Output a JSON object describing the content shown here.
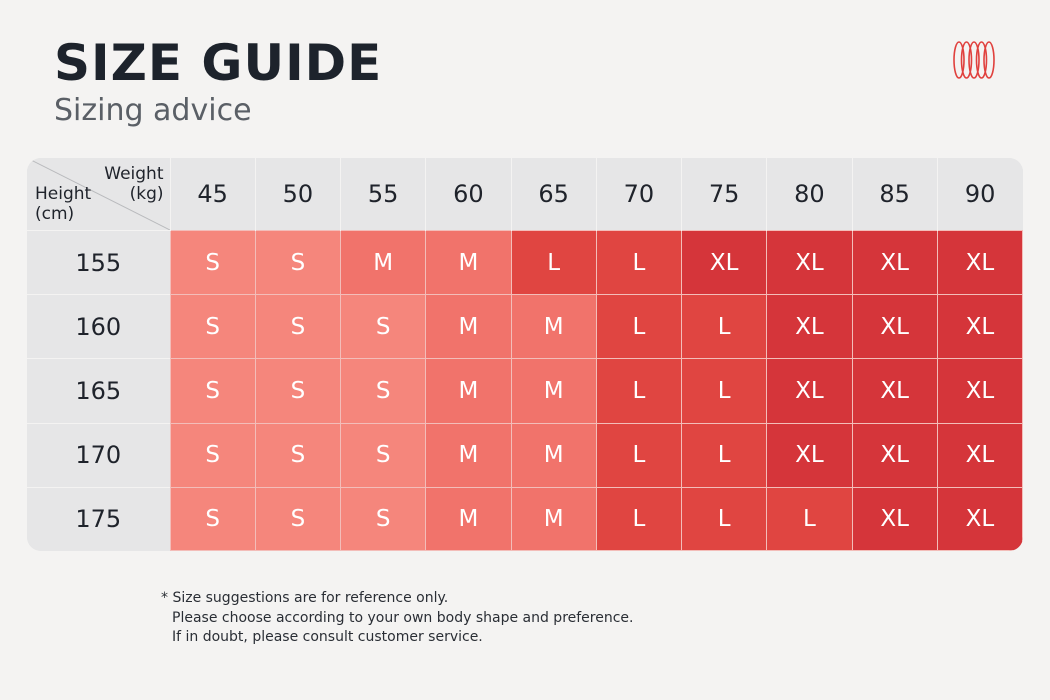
{
  "header": {
    "title": "SIZE GUIDE",
    "subtitle": "Sizing advice",
    "logo_icon": "coil-rings-icon"
  },
  "colors": {
    "accent": "#e0403d",
    "S": "#f5867c",
    "M": "#f1736b",
    "L": "#e04541",
    "XL": "#d5353a",
    "header_bg": "#e6e6e7"
  },
  "table": {
    "corner": {
      "weight_label": "Weight",
      "weight_unit": "(kg)",
      "height_label": "Height",
      "height_unit": "(cm)"
    },
    "weights": [
      "45",
      "50",
      "55",
      "60",
      "65",
      "70",
      "75",
      "80",
      "85",
      "90"
    ],
    "rows": [
      {
        "height": "155",
        "sizes": [
          "S",
          "S",
          "M",
          "M",
          "L",
          "L",
          "XL",
          "XL",
          "XL",
          "XL"
        ]
      },
      {
        "height": "160",
        "sizes": [
          "S",
          "S",
          "S",
          "M",
          "M",
          "L",
          "L",
          "XL",
          "XL",
          "XL"
        ]
      },
      {
        "height": "165",
        "sizes": [
          "S",
          "S",
          "S",
          "M",
          "M",
          "L",
          "L",
          "XL",
          "XL",
          "XL"
        ]
      },
      {
        "height": "170",
        "sizes": [
          "S",
          "S",
          "S",
          "M",
          "M",
          "L",
          "L",
          "XL",
          "XL",
          "XL"
        ]
      },
      {
        "height": "175",
        "sizes": [
          "S",
          "S",
          "S",
          "M",
          "M",
          "L",
          "L",
          "L",
          "XL",
          "XL"
        ]
      }
    ]
  },
  "footnote": {
    "line1": "* Size suggestions are for reference only.",
    "line2": "Please choose according to your own body shape and preference.",
    "line3": "If in doubt, please consult customer service."
  }
}
